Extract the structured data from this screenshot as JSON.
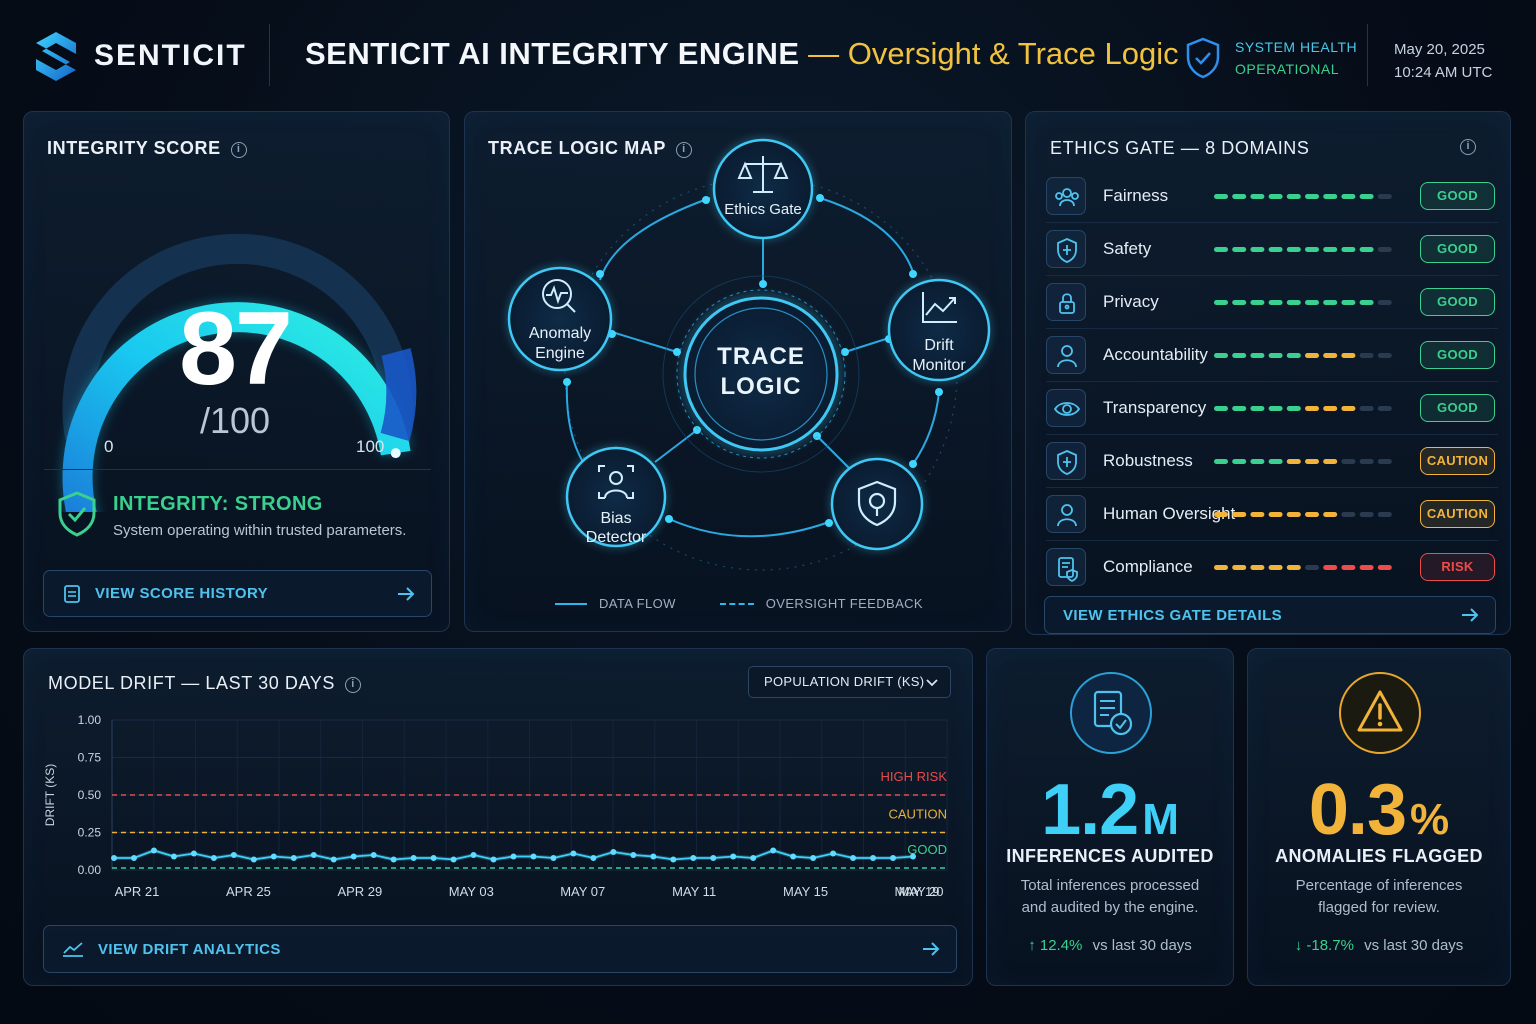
{
  "header": {
    "logo_text": "SENTICIT",
    "title_main": "SENTICIT AI INTEGRITY ENGINE",
    "title_sep": " — ",
    "title_sub": "Oversight & Trace Logic",
    "health_label": "SYSTEM HEALTH",
    "health_status": "OPERATIONAL",
    "date": "May 20, 2025",
    "time": "10:24 AM UTC"
  },
  "integrity": {
    "title": "INTEGRITY SCORE",
    "score": "87",
    "max": "/100",
    "gauge_value": 87,
    "min_label": "0",
    "max_label": "100",
    "status_title": "INTEGRITY: STRONG",
    "status_desc": "System operating within trusted parameters.",
    "button": "VIEW SCORE HISTORY"
  },
  "trace": {
    "title": "TRACE LOGIC MAP",
    "center_line1": "TRACE",
    "center_line2": "LOGIC",
    "node_ethics": "Ethics Gate",
    "node_anomaly_1": "Anomaly",
    "node_anomaly_2": "Engine",
    "node_drift_1": "Drift",
    "node_drift_2": "Monitor",
    "node_bias_1": "Bias",
    "node_bias_2": "Detector",
    "legend_flow": "DATA FLOW",
    "legend_feedback": "OVERSIGHT FEEDBACK"
  },
  "ethics": {
    "title": "ETHICS GATE — 8 DOMAINS",
    "button": "VIEW ETHICS GATE DETAILS",
    "domains": [
      {
        "label": "Fairness",
        "status": "GOOD",
        "segments": [
          "g",
          "g",
          "g",
          "g",
          "g",
          "g",
          "g",
          "g",
          "g",
          "x"
        ]
      },
      {
        "label": "Safety",
        "status": "GOOD",
        "segments": [
          "g",
          "g",
          "g",
          "g",
          "g",
          "g",
          "g",
          "g",
          "g",
          "x"
        ]
      },
      {
        "label": "Privacy",
        "status": "GOOD",
        "segments": [
          "g",
          "g",
          "g",
          "g",
          "g",
          "g",
          "g",
          "g",
          "g",
          "x"
        ]
      },
      {
        "label": "Accountability",
        "status": "GOOD",
        "segments": [
          "g",
          "g",
          "g",
          "g",
          "g",
          "y",
          "y",
          "y",
          "x",
          "x"
        ]
      },
      {
        "label": "Transparency",
        "status": "GOOD",
        "segments": [
          "g",
          "g",
          "g",
          "g",
          "g",
          "y",
          "y",
          "y",
          "x",
          "x"
        ]
      },
      {
        "label": "Robustness",
        "status": "CAUTION",
        "segments": [
          "g",
          "g",
          "g",
          "g",
          "y",
          "y",
          "y",
          "x",
          "x",
          "x"
        ]
      },
      {
        "label": "Human Oversight",
        "status": "CAUTION",
        "segments": [
          "y",
          "y",
          "y",
          "y",
          "y",
          "y",
          "y",
          "x",
          "x",
          "x"
        ]
      },
      {
        "label": "Compliance",
        "status": "RISK",
        "segments": [
          "y",
          "y",
          "y",
          "y",
          "y",
          "x",
          "r",
          "r",
          "r",
          "r"
        ]
      }
    ],
    "status_colors": {
      "GOOD": "#3ad08f",
      "CAUTION": "#f2b33a",
      "RISK": "#ee4b4b"
    }
  },
  "drift": {
    "title": "MODEL DRIFT — LAST 30 DAYS",
    "dropdown": "POPULATION DRIFT (KS)",
    "button": "VIEW DRIFT ANALYTICS",
    "chart_data": {
      "type": "line",
      "ylabel": "DRIFT (KS)",
      "ylim": [
        0,
        1
      ],
      "yticks": [
        "0.00",
        "0.25",
        "0.50",
        "0.75",
        "1.00"
      ],
      "xticks": [
        "APR 21",
        "APR 25",
        "APR 29",
        "MAY 03",
        "MAY 07",
        "MAY 11",
        "MAY 15",
        "MAY 19",
        "MAY 20"
      ],
      "thresholds": [
        {
          "label": "HIGH RISK",
          "value": 0.5,
          "color": "#e84a4a"
        },
        {
          "label": "CAUTION",
          "value": 0.25,
          "color": "#e8b23a"
        },
        {
          "label": "GOOD",
          "value": 0.0,
          "color": "#3ad08f"
        }
      ],
      "values": [
        0.08,
        0.08,
        0.13,
        0.09,
        0.11,
        0.08,
        0.1,
        0.07,
        0.09,
        0.08,
        0.1,
        0.07,
        0.09,
        0.1,
        0.07,
        0.08,
        0.08,
        0.07,
        0.1,
        0.07,
        0.09,
        0.09,
        0.08,
        0.11,
        0.08,
        0.12,
        0.1,
        0.09,
        0.07,
        0.08,
        0.08,
        0.09,
        0.08,
        0.13,
        0.09,
        0.08,
        0.11,
        0.08,
        0.08,
        0.08,
        0.09
      ]
    }
  },
  "inferences": {
    "value": "1.2",
    "unit": "M",
    "label": "INFERENCES AUDITED",
    "desc1": "Total inferences processed",
    "desc2": "and audited by the engine.",
    "trend": "12.4%",
    "trend_suffix": "vs last 30 days"
  },
  "anomalies": {
    "value": "0.3",
    "unit": "%",
    "label": "ANOMALIES FLAGGED",
    "desc1": "Percentage of inferences",
    "desc2": "flagged for review.",
    "trend": "-18.7%",
    "trend_suffix": "vs last 30 days"
  }
}
